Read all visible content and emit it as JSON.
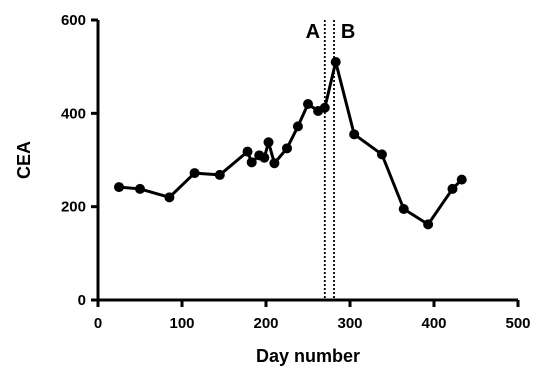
{
  "chart_data": {
    "type": "line",
    "title": "",
    "xlabel": "Day number",
    "ylabel": "CEA",
    "xlim": [
      0,
      500
    ],
    "ylim": [
      0,
      600
    ],
    "x_ticks": [
      "0",
      "100",
      "200",
      "300",
      "400",
      "500"
    ],
    "y_ticks": [
      "0",
      "200",
      "400",
      "600"
    ],
    "x_tick_values": [
      0,
      100,
      200,
      300,
      400,
      500
    ],
    "y_tick_values": [
      0,
      200,
      400,
      600
    ],
    "grid": false,
    "series": [
      {
        "points": [
          [
            25,
            242
          ],
          [
            50,
            238
          ],
          [
            85,
            220
          ],
          [
            115,
            272
          ],
          [
            145,
            268
          ],
          [
            178,
            318
          ],
          [
            183,
            295
          ],
          [
            192,
            310
          ],
          [
            198,
            305
          ],
          [
            203,
            338
          ],
          [
            210,
            293
          ],
          [
            225,
            325
          ],
          [
            238,
            372
          ],
          [
            250,
            420
          ],
          [
            262,
            405
          ],
          [
            270,
            412
          ],
          [
            283,
            510
          ],
          [
            305,
            355
          ],
          [
            338,
            312
          ],
          [
            364,
            195
          ],
          [
            393,
            162
          ],
          [
            422,
            238
          ],
          [
            433,
            258
          ]
        ]
      }
    ],
    "annotations": [
      {
        "label": "A",
        "x": 270
      },
      {
        "label": "B",
        "x": 281
      }
    ]
  }
}
